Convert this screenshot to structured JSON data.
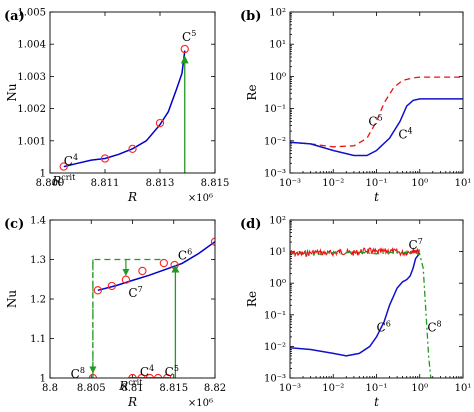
{
  "chart_data": [
    {
      "panel": "(a)",
      "type": "line",
      "xlabel": "R",
      "ylabel": "Nu",
      "x_multiplier": "×10⁶",
      "xlim": [
        8.809,
        8.815
      ],
      "ylim": [
        1.0,
        1.005
      ],
      "xticks": [
        "8.809",
        "8.811",
        "8.813",
        "8.815"
      ],
      "yticks": [
        "1",
        "1.001",
        "1.002",
        "1.003",
        "1.004",
        "1.005"
      ],
      "series": [
        {
          "style": "line",
          "color": "#0000cc",
          "x": [
            8.8095,
            8.81,
            8.8105,
            8.811,
            8.8115,
            8.812,
            8.8125,
            8.813,
            8.8133,
            8.8136,
            8.8138,
            8.8139
          ],
          "y": [
            1.0002,
            1.0003,
            1.0004,
            1.00045,
            1.00058,
            1.00075,
            1.001,
            1.0015,
            1.0019,
            1.0026,
            1.0031,
            1.0038
          ]
        },
        {
          "style": "markers",
          "color": "#ff2222",
          "x": [
            8.8095,
            8.811,
            8.812,
            8.813,
            8.8139
          ],
          "y": [
            1.0002,
            1.00045,
            1.00075,
            1.00155,
            1.00385
          ]
        },
        {
          "style": "arrow",
          "color": "#229922",
          "x": [
            8.8139,
            8.8139
          ],
          "y": [
            1.0,
            1.0036
          ]
        }
      ],
      "annotations": [
        {
          "base": "C",
          "sup": "4",
          "x": 8.8095,
          "y": 1.00025
        },
        {
          "base": "C",
          "sup": "5",
          "x": 8.8138,
          "y": 1.0041
        },
        {
          "base": "R",
          "sup": "crit",
          "x": 8.8095,
          "y": 1.0
        }
      ]
    },
    {
      "panel": "(b)",
      "type": "line",
      "xlabel": "t",
      "ylabel": "Re",
      "xscale": "log",
      "yscale": "log",
      "xlim": [
        0.001,
        10
      ],
      "ylim": [
        0.001,
        100
      ],
      "xticks": [
        "10⁻³",
        "10⁻²",
        "10⁻¹",
        "10⁰",
        "10¹"
      ],
      "yticks": [
        "10⁻³",
        "10⁻²",
        "10⁻¹",
        "10⁰",
        "10¹",
        "10²"
      ],
      "series": [
        {
          "name": "C5",
          "style": "dashed",
          "color": "#ee1111",
          "x": [
            0.001,
            0.003,
            0.01,
            0.03,
            0.06,
            0.1,
            0.15,
            0.25,
            0.4,
            0.7,
            1,
            2,
            5,
            10
          ],
          "y": [
            0.009,
            0.008,
            0.0065,
            0.007,
            0.012,
            0.04,
            0.15,
            0.45,
            0.75,
            0.9,
            0.95,
            0.95,
            0.95,
            0.95
          ]
        },
        {
          "name": "C4",
          "style": "solid",
          "color": "#1111cc",
          "x": [
            0.001,
            0.003,
            0.01,
            0.03,
            0.06,
            0.1,
            0.2,
            0.35,
            0.5,
            0.7,
            1,
            2,
            5,
            10
          ],
          "y": [
            0.009,
            0.008,
            0.005,
            0.0035,
            0.0035,
            0.005,
            0.012,
            0.04,
            0.12,
            0.18,
            0.2,
            0.2,
            0.2,
            0.2
          ]
        }
      ],
      "annotations": [
        {
          "base": "C",
          "sup": "5",
          "x": 0.065,
          "y": 0.03
        },
        {
          "base": "C",
          "sup": "4",
          "x": 0.32,
          "y": 0.012
        }
      ]
    },
    {
      "panel": "(c)",
      "type": "line",
      "xlabel": "R",
      "ylabel": "Nu",
      "x_multiplier": "×10⁶",
      "xlim": [
        8.8,
        8.82
      ],
      "ylim": [
        1.0,
        1.4
      ],
      "xticks": [
        "8.8",
        "8.805",
        "8.81",
        "8.815",
        "8.82"
      ],
      "yticks": [
        "1",
        "1.1",
        "1.2",
        "1.3",
        "1.4"
      ],
      "series": [
        {
          "style": "line",
          "color": "#0000cc",
          "x": [
            8.8058,
            8.808,
            8.81,
            8.812,
            8.814,
            8.816,
            8.818,
            8.82
          ],
          "y": [
            1.222,
            1.234,
            1.247,
            1.26,
            1.275,
            1.29,
            1.315,
            1.345
          ]
        },
        {
          "style": "markers",
          "color": "#ff2222",
          "x": [
            8.8058,
            8.8075,
            8.8092,
            8.8112,
            8.8138,
            8.8151,
            8.82
          ],
          "y": [
            1.222,
            1.233,
            1.249,
            1.271,
            1.291,
            1.286,
            1.345
          ]
        },
        {
          "style": "line",
          "color": "#0000cc",
          "x": [
            8.8095,
            8.8145
          ],
          "y": [
            1.0,
            1.0
          ]
        },
        {
          "style": "markers",
          "color": "#ff2222",
          "x": [
            8.8052,
            8.81,
            8.8111,
            8.8121,
            8.8131,
            8.8142
          ],
          "y": [
            1.0,
            1.0,
            1.0,
            1.0,
            1.0,
            1.0
          ]
        },
        {
          "style": "dashed",
          "color": "#229922",
          "x": [
            8.8052,
            8.8052,
            8.8135
          ],
          "y": [
            1.0,
            1.3,
            1.3
          ]
        },
        {
          "style": "arrow",
          "color": "#229922",
          "x": [
            8.8152,
            8.8152
          ],
          "y": [
            1.0,
            1.283
          ]
        }
      ],
      "annotations": [
        {
          "base": "C",
          "sup": "6",
          "x": 8.8155,
          "y": 1.3
        },
        {
          "base": "C",
          "sup": "7",
          "x": 8.8095,
          "y": 1.205
        },
        {
          "base": "C",
          "sup": "8",
          "x": 8.8025,
          "y": 1.0
        },
        {
          "base": "C",
          "sup": "4",
          "x": 8.8109,
          "y": 1.005
        },
        {
          "base": "C",
          "sup": "5",
          "x": 8.8139,
          "y": 1.005
        },
        {
          "base": "R",
          "sup": "crit",
          "x": 8.8098,
          "y": 0.975
        }
      ]
    },
    {
      "panel": "(d)",
      "type": "line",
      "xlabel": "t",
      "ylabel": "Re",
      "xscale": "log",
      "yscale": "log",
      "xlim": [
        0.001,
        10
      ],
      "ylim": [
        0.001,
        100
      ],
      "xticks": [
        "10⁻³",
        "10⁻²",
        "10⁻¹",
        "10⁰",
        "10¹"
      ],
      "yticks": [
        "10⁻³",
        "10⁻²",
        "10⁻¹",
        "10⁰",
        "10¹",
        "10²"
      ],
      "series": [
        {
          "name": "C6",
          "style": "solid",
          "color": "#1111cc",
          "x": [
            0.001,
            0.003,
            0.01,
            0.02,
            0.04,
            0.07,
            0.1,
            0.15,
            0.2,
            0.3,
            0.4,
            0.5,
            0.6,
            0.7,
            0.8,
            1.0
          ],
          "y": [
            0.009,
            0.008,
            0.006,
            0.005,
            0.006,
            0.01,
            0.02,
            0.06,
            0.2,
            0.7,
            1.1,
            1.3,
            1.7,
            3.0,
            6.0,
            9.0
          ]
        },
        {
          "name": "C7",
          "style": "noisy",
          "color": "#ee1111",
          "x": [
            0.001,
            0.002,
            0.004,
            0.008,
            0.015,
            0.03,
            0.06,
            0.1,
            0.2,
            0.4,
            0.7,
            1.0
          ],
          "y": [
            9.0,
            8.5,
            9.5,
            8.8,
            10.0,
            9.0,
            11.0,
            9.5,
            10.5,
            9.0,
            11.0,
            10.0
          ]
        },
        {
          "name": "C8",
          "style": "dashdot",
          "color": "#229922",
          "x": [
            0.001,
            0.002,
            0.004,
            0.008,
            0.015,
            0.03,
            0.06,
            0.1,
            0.2,
            0.4,
            0.7,
            1.0,
            1.2,
            1.4,
            1.6,
            1.8
          ],
          "y": [
            8.5,
            9.0,
            8.0,
            9.5,
            8.5,
            10.0,
            9.0,
            8.5,
            9.5,
            9.0,
            10.0,
            8.0,
            3.0,
            0.1,
            0.005,
            0.001
          ]
        }
      ],
      "annotations": [
        {
          "base": "C",
          "sup": "7",
          "x": 0.55,
          "y": 12.0
        },
        {
          "base": "C",
          "sup": "6",
          "x": 0.1,
          "y": 0.03
        },
        {
          "base": "C",
          "sup": "8",
          "x": 1.5,
          "y": 0.03
        }
      ]
    }
  ]
}
